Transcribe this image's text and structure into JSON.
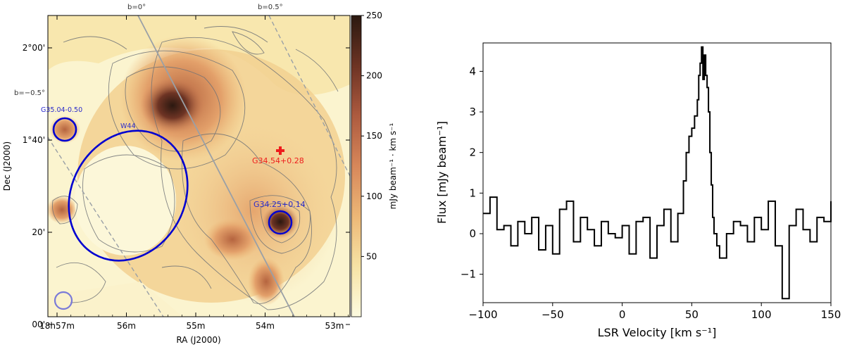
{
  "chart_data": [
    {
      "type": "heatmap",
      "xlabel": "RA (J2000)",
      "ylabel": "Dec (J2000)",
      "x_ticks": [
        {
          "ra_min": 57,
          "label": "18h57m"
        },
        {
          "ra_min": 56,
          "label": "56m"
        },
        {
          "ra_min": 55,
          "label": "55m"
        },
        {
          "ra_min": 54,
          "label": "54m"
        },
        {
          "ra_min": 53,
          "label": "53m"
        }
      ],
      "y_ticks": [
        {
          "dec_arcmin": 120,
          "label": "2°00'"
        },
        {
          "dec_arcmin": 100,
          "label": "1°40'"
        },
        {
          "dec_arcmin": 80,
          "label": "20'"
        },
        {
          "dec_arcmin": 60,
          "label": "00'"
        }
      ],
      "colorbar": {
        "label": "mJy beam⁻¹ · km s⁻¹",
        "range": [
          0,
          250
        ],
        "ticks": [
          {
            "value": 50,
            "label": "50"
          },
          {
            "value": 100,
            "label": "100"
          },
          {
            "value": 150,
            "label": "150"
          },
          {
            "value": 200,
            "label": "200"
          },
          {
            "value": 250,
            "label": "250"
          }
        ],
        "colors": [
          "#fdfbe0",
          "#f6e2a4",
          "#edb877",
          "#d7875a",
          "#ac5a3f",
          "#6e3424",
          "#2b1810"
        ]
      },
      "galactic_lines": [
        {
          "label": "b=0°",
          "style": "solid",
          "color": "#9aa0a6"
        },
        {
          "label": "b=0.5°",
          "style": "dashed",
          "color": "#9aa0a6"
        },
        {
          "label": "b=−0.5°",
          "style": "dashed",
          "color": "#9aa0a6"
        }
      ],
      "annotations": [
        {
          "label": "G35.04-0.50",
          "shape": "circle",
          "color": "#0000d0"
        },
        {
          "label": "W44",
          "shape": "ellipse",
          "color": "#0000d0"
        },
        {
          "label": "G34.54+0.28",
          "shape": "cross",
          "color": "#ee1c1c"
        },
        {
          "label": "G34.25+0.14",
          "shape": "circle",
          "color": "#0000d0"
        }
      ]
    },
    {
      "type": "line",
      "xlabel": "LSR Velocity [km s⁻¹]",
      "ylabel": "Flux [mJy beam⁻¹]",
      "xlim": [
        -100,
        150
      ],
      "ylim": [
        -1.7,
        4.7
      ],
      "x_ticks": [
        {
          "value": -100,
          "label": "−100"
        },
        {
          "value": -50,
          "label": "−50"
        },
        {
          "value": 0,
          "label": "0"
        },
        {
          "value": 50,
          "label": "50"
        },
        {
          "value": 100,
          "label": "100"
        },
        {
          "value": 150,
          "label": "150"
        }
      ],
      "y_ticks": [
        {
          "value": -1,
          "label": "−1"
        },
        {
          "value": 0,
          "label": "0"
        },
        {
          "value": 1,
          "label": "1"
        },
        {
          "value": 2,
          "label": "2"
        },
        {
          "value": 3,
          "label": "3"
        },
        {
          "value": 4,
          "label": "4"
        }
      ],
      "series": [
        {
          "color": "#000000",
          "x": [
            -100,
            -95,
            -90,
            -85,
            -80,
            -75,
            -70,
            -65,
            -60,
            -55,
            -50,
            -45,
            -40,
            -35,
            -30,
            -25,
            -20,
            -15,
            -10,
            -5,
            0,
            5,
            10,
            15,
            20,
            25,
            30,
            35,
            40,
            44,
            46,
            48,
            50,
            52,
            54,
            55,
            56,
            57,
            58,
            59,
            60,
            61,
            62,
            63,
            64,
            65,
            66,
            68,
            70,
            75,
            80,
            85,
            90,
            95,
            100,
            105,
            110,
            115,
            120,
            125,
            130,
            135,
            140,
            145,
            150
          ],
          "y": [
            0.5,
            0.9,
            0.1,
            0.2,
            -0.3,
            0.3,
            0.0,
            0.4,
            -0.4,
            0.2,
            -0.5,
            0.6,
            0.8,
            -0.2,
            0.4,
            0.1,
            -0.3,
            0.3,
            0.0,
            -0.1,
            0.2,
            -0.5,
            0.3,
            0.4,
            -0.6,
            0.2,
            0.6,
            -0.2,
            0.5,
            1.3,
            2.0,
            2.4,
            2.6,
            2.9,
            3.3,
            3.9,
            4.2,
            4.6,
            3.8,
            4.4,
            3.9,
            3.6,
            3.0,
            2.0,
            1.2,
            0.4,
            0.0,
            -0.3,
            -0.6,
            0.0,
            0.3,
            0.2,
            -0.2,
            0.4,
            0.1,
            0.8,
            -0.3,
            -1.6,
            0.2,
            0.6,
            0.1,
            -0.2,
            0.4,
            0.3,
            0.8
          ]
        }
      ]
    }
  ]
}
